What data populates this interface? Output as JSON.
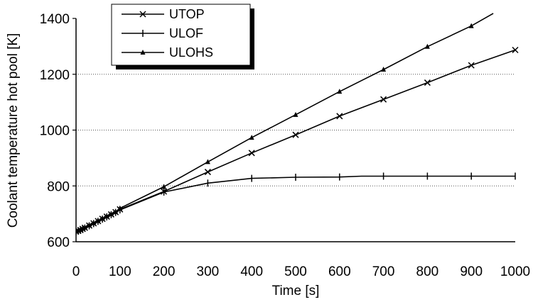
{
  "chart_data": {
    "type": "line",
    "xlabel": "Time [s]",
    "ylabel": "Coolant temperature hot pool [K]",
    "xlim": [
      0,
      1000
    ],
    "ylim": [
      600,
      1400
    ],
    "xticks": [
      "0",
      "100",
      "200",
      "300",
      "400",
      "500",
      "600",
      "700",
      "800",
      "900",
      "1000"
    ],
    "yticks": [
      "600",
      "800",
      "1000",
      "1200",
      "1400"
    ],
    "grid": "horizontal dotted",
    "legend_position": "top-left",
    "series": [
      {
        "name": "UTOP",
        "marker": "x",
        "x": [
          0,
          5,
          10,
          15,
          20,
          30,
          40,
          50,
          60,
          70,
          80,
          90,
          100,
          200,
          300,
          400,
          500,
          600,
          700,
          800,
          900,
          1000
        ],
        "y": [
          637,
          639,
          642,
          646,
          650,
          658,
          666,
          674,
          682,
          690,
          698,
          706,
          716,
          780,
          850,
          918,
          983,
          1050,
          1110,
          1170,
          1232,
          1287
        ]
      },
      {
        "name": "ULOF",
        "marker": "plus",
        "x": [
          0,
          5,
          10,
          15,
          20,
          30,
          40,
          50,
          60,
          70,
          80,
          90,
          100,
          200,
          300,
          400,
          500,
          600,
          650,
          700,
          800,
          900,
          1000
        ],
        "y": [
          636,
          638,
          641,
          645,
          649,
          657,
          665,
          673,
          681,
          689,
          697,
          705,
          714,
          778,
          810,
          827,
          831,
          832,
          835,
          835,
          835,
          835,
          835
        ]
      },
      {
        "name": "ULOHS",
        "marker": "triangle",
        "x": [
          0,
          5,
          10,
          15,
          20,
          30,
          40,
          50,
          60,
          70,
          80,
          90,
          100,
          200,
          300,
          400,
          500,
          600,
          700,
          800,
          900,
          950
        ],
        "y": [
          637,
          640,
          643,
          647,
          651,
          659,
          667,
          675,
          683,
          691,
          699,
          707,
          720,
          797,
          886,
          973,
          1055,
          1138,
          1217,
          1299,
          1373,
          1418
        ]
      }
    ]
  }
}
